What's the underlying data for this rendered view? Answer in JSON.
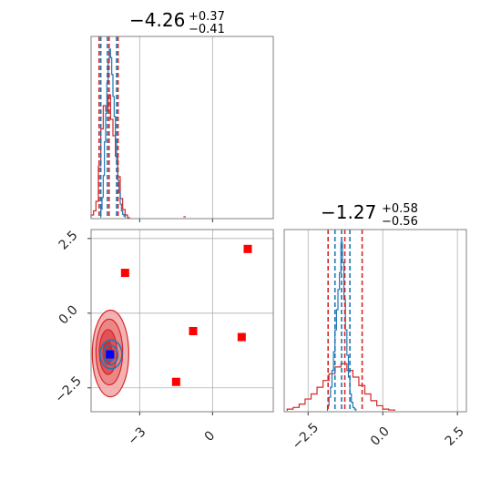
{
  "chart_data": {
    "type": "corner",
    "grid": true,
    "colors": {
      "red": "#d62728",
      "red_light": "#f3a5a6",
      "blue": "#1f77b4",
      "marker_red": "#ff0000",
      "marker_blue": "#0000ff",
      "grid": "#b0b0b0",
      "axes": "#808080"
    },
    "param1": {
      "title": {
        "median": "−4.26",
        "plus": "+0.37",
        "minus": "−0.41"
      },
      "range": [
        -5.0,
        2.5
      ],
      "ticks": [
        {
          "value": -3,
          "label": "−3"
        },
        {
          "value": 0,
          "label": "0"
        }
      ],
      "quantiles_red": [
        -4.67,
        -4.26,
        -3.89
      ],
      "quantiles_blue": [
        -4.6,
        -4.33,
        -3.95
      ],
      "hist_red": {
        "edges": [
          -5.0,
          -4.9,
          -4.8,
          -4.7,
          -4.6,
          -4.5,
          -4.4,
          -4.3,
          -4.2,
          -4.1,
          -4.0,
          -3.9,
          -3.8,
          -3.7,
          -3.6,
          -3.5,
          -3.4
        ],
        "counts": [
          0.02,
          0.05,
          0.12,
          0.38,
          0.65,
          0.82,
          0.78,
          0.9,
          0.72,
          0.6,
          0.45,
          0.3,
          0.14,
          0.06,
          0.02,
          0.0
        ]
      },
      "hist_blue": {
        "edges": [
          -4.6,
          -4.55,
          -4.5,
          -4.45,
          -4.4,
          -4.35,
          -4.3,
          -4.25,
          -4.2,
          -4.15,
          -4.1,
          -4.05,
          -4.0,
          -3.95,
          -3.9,
          -3.85,
          -3.8,
          -3.75,
          -3.7,
          -3.65,
          -3.6
        ],
        "counts": [
          0.05,
          0.12,
          0.25,
          0.45,
          0.62,
          0.8,
          0.92,
          1.0,
          0.95,
          0.85,
          0.72,
          0.6,
          0.45,
          0.33,
          0.22,
          0.15,
          0.08,
          0.04,
          0.02,
          0.01
        ]
      },
      "outlier_bins": [
        {
          "x0": -1.2,
          "x1": -1.1,
          "count": 0.01
        }
      ]
    },
    "param2": {
      "title": {
        "median": "−1.27",
        "plus": "+0.58",
        "minus": "−0.56"
      },
      "range": [
        -3.3,
        2.8
      ],
      "ticks": [
        {
          "value": -2.5,
          "label": "−2.5"
        },
        {
          "value": 0.0,
          "label": "0.0"
        },
        {
          "value": 2.5,
          "label": "2.5"
        }
      ],
      "quantiles_red": [
        -1.83,
        -1.27,
        -0.69
      ],
      "quantiles_blue": [
        -1.6,
        -1.38,
        -1.1
      ],
      "hist_red": {
        "edges": [
          -3.2,
          -3.0,
          -2.8,
          -2.6,
          -2.4,
          -2.2,
          -2.0,
          -1.8,
          -1.6,
          -1.4,
          -1.2,
          -1.0,
          -0.8,
          -0.6,
          -0.4,
          -0.2,
          0.0,
          0.2,
          0.4
        ],
        "counts": [
          0.01,
          0.02,
          0.04,
          0.07,
          0.1,
          0.14,
          0.18,
          0.22,
          0.26,
          0.28,
          0.24,
          0.2,
          0.15,
          0.1,
          0.06,
          0.03,
          0.01,
          0.005
        ]
      },
      "hist_blue": {
        "edges": [
          -1.85,
          -1.8,
          -1.75,
          -1.7,
          -1.65,
          -1.6,
          -1.55,
          -1.5,
          -1.45,
          -1.4,
          -1.35,
          -1.3,
          -1.25,
          -1.2,
          -1.15,
          -1.1,
          -1.05,
          -1.0,
          -0.95,
          -0.9
        ],
        "counts": [
          0.03,
          0.08,
          0.14,
          0.24,
          0.35,
          0.48,
          0.6,
          0.72,
          0.82,
          1.0,
          0.88,
          0.66,
          0.48,
          0.33,
          0.2,
          0.1,
          0.05,
          0.02,
          0.01
        ]
      }
    },
    "joint": {
      "x_range": [
        -5.0,
        2.5
      ],
      "y_range": [
        -3.3,
        2.8
      ],
      "x_ticks": [
        {
          "value": -3,
          "label": "−3"
        },
        {
          "value": 0,
          "label": "0"
        }
      ],
      "y_ticks": [
        {
          "value": 2.5,
          "label": "2.5"
        },
        {
          "value": 0.0,
          "label": "0.0"
        },
        {
          "value": -2.5,
          "label": "−2.5"
        }
      ],
      "red_contours": [
        {
          "cx": -4.2,
          "cy": -1.35,
          "rx": 0.75,
          "ry": 1.45
        },
        {
          "cx": -4.25,
          "cy": -1.3,
          "rx": 0.55,
          "ry": 1.1
        },
        {
          "cx": -4.3,
          "cy": -1.3,
          "rx": 0.36,
          "ry": 0.75
        },
        {
          "cx": -4.32,
          "cy": -1.32,
          "rx": 0.18,
          "ry": 0.4
        }
      ],
      "blue_contours": [
        {
          "cx": -4.18,
          "cy": -1.38,
          "rx": 0.45,
          "ry": 0.48
        },
        {
          "cx": -4.2,
          "cy": -1.4,
          "rx": 0.3,
          "ry": 0.32
        },
        {
          "cx": -4.22,
          "cy": -1.42,
          "rx": 0.16,
          "ry": 0.18
        }
      ],
      "red_markers": [
        {
          "x": -3.6,
          "y": 1.35
        },
        {
          "x": -1.5,
          "y": -2.3
        },
        {
          "x": -0.8,
          "y": -0.6
        },
        {
          "x": 1.2,
          "y": -0.8
        },
        {
          "x": 1.45,
          "y": 2.15
        }
      ],
      "blue_marker": {
        "x": -4.22,
        "y": -1.38
      }
    }
  }
}
